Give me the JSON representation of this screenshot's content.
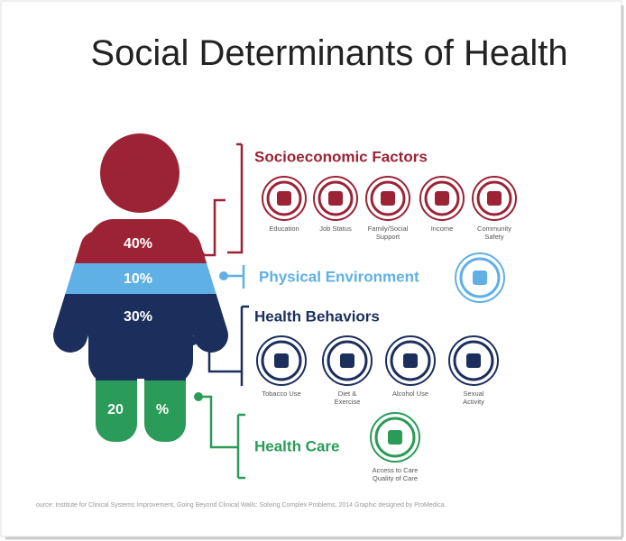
{
  "title": "Social Determinants of Health",
  "figure": {
    "shoulders": "40%",
    "waist": "10%",
    "torso": "30%",
    "legs_left": "20",
    "legs_right": "%"
  },
  "groups": [
    {
      "title": "Socioeconomic Factors",
      "items": [
        [
          "Education"
        ],
        [
          "Job Status"
        ],
        [
          "Family/Social",
          "Support"
        ],
        [
          "Income"
        ],
        [
          "Community",
          "Safety"
        ]
      ]
    },
    {
      "title": "Physical Environment",
      "items": [
        []
      ]
    },
    {
      "title": "Health Behaviors",
      "items": [
        [
          "Tobacco Use"
        ],
        [
          "Diet &",
          "Exercise"
        ],
        [
          "Alcohol Use"
        ],
        [
          "Sexual",
          "Activity"
        ]
      ]
    },
    {
      "title": "Health Care",
      "items": [
        [
          "Access to Care",
          "Quality of Care"
        ]
      ]
    }
  ],
  "source": "ource: Institute for Clinical Systems Improvement, Going Beyond Clinical Walls: Solving Complex Problems, 2014 Graphic designed by ProMedica."
}
